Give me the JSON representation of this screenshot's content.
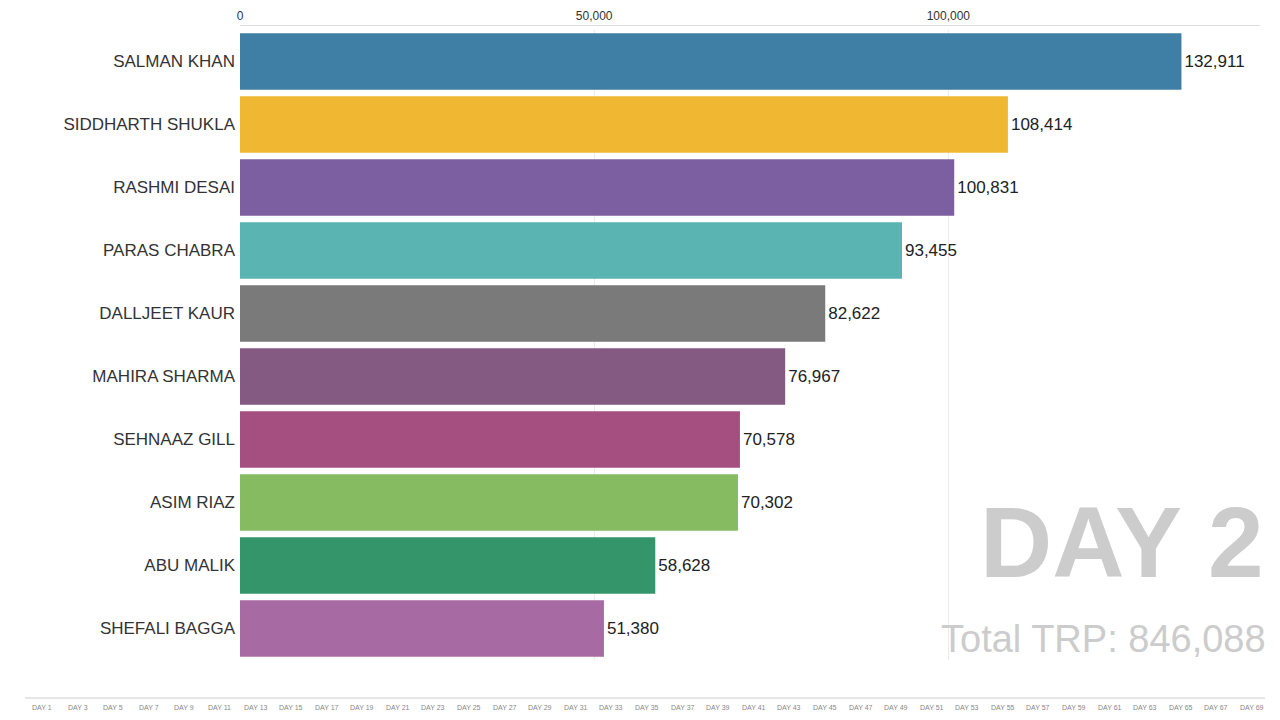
{
  "chart_data": {
    "type": "bar",
    "orientation": "horizontal",
    "categories": [
      "SALMAN KHAN",
      "SIDDHARTH SHUKLA",
      "RASHMI DESAI",
      "PARAS CHABRA",
      "DALLJEET KAUR",
      "MAHIRA SHARMA",
      "SEHNAAZ GILL",
      "ASIM RIAZ",
      "ABU MALIK",
      "SHEFALI BAGGA"
    ],
    "values": [
      132911,
      108414,
      100831,
      93455,
      82622,
      76967,
      70578,
      70302,
      58628,
      51380
    ],
    "value_labels": [
      "132,911",
      "108,414",
      "100,831",
      "93,455",
      "82,622",
      "76,967",
      "70,578",
      "70,302",
      "58,628",
      "51,380"
    ],
    "colors": [
      "#3f7fa5",
      "#f0b832",
      "#7b5fa0",
      "#5ab4b2",
      "#7a7a7a",
      "#845a82",
      "#a44f80",
      "#86bb62",
      "#34946a",
      "#a76aa3"
    ],
    "xlim": [
      0,
      144000
    ],
    "xticks": [
      0,
      {
        "value": 50000,
        "label": "50,000"
      },
      {
        "value": 100000,
        "label": "100,000"
      }
    ],
    "grid": true,
    "data_labels": true,
    "annotations": [
      "DAY 2",
      "Total TRP: 846,088"
    ],
    "timeline_labels": [
      "DAY 1",
      "DAY 3",
      "DAY 5",
      "DAY 7",
      "DAY 9",
      "DAY 11",
      "DAY 13",
      "DAY 15",
      "DAY 17",
      "DAY 19",
      "DAY 21",
      "DAY 23",
      "DAY 25",
      "DAY 27",
      "DAY 29",
      "DAY 31",
      "DAY 33",
      "DAY 35",
      "DAY 37",
      "DAY 39",
      "DAY 41",
      "DAY 43",
      "DAY 45",
      "DAY 47",
      "DAY 49",
      "DAY 51",
      "DAY 53",
      "DAY 55",
      "DAY 57",
      "DAY 59",
      "DAY 61",
      "DAY 63",
      "DAY 65",
      "DAY 67",
      "DAY 69"
    ]
  }
}
